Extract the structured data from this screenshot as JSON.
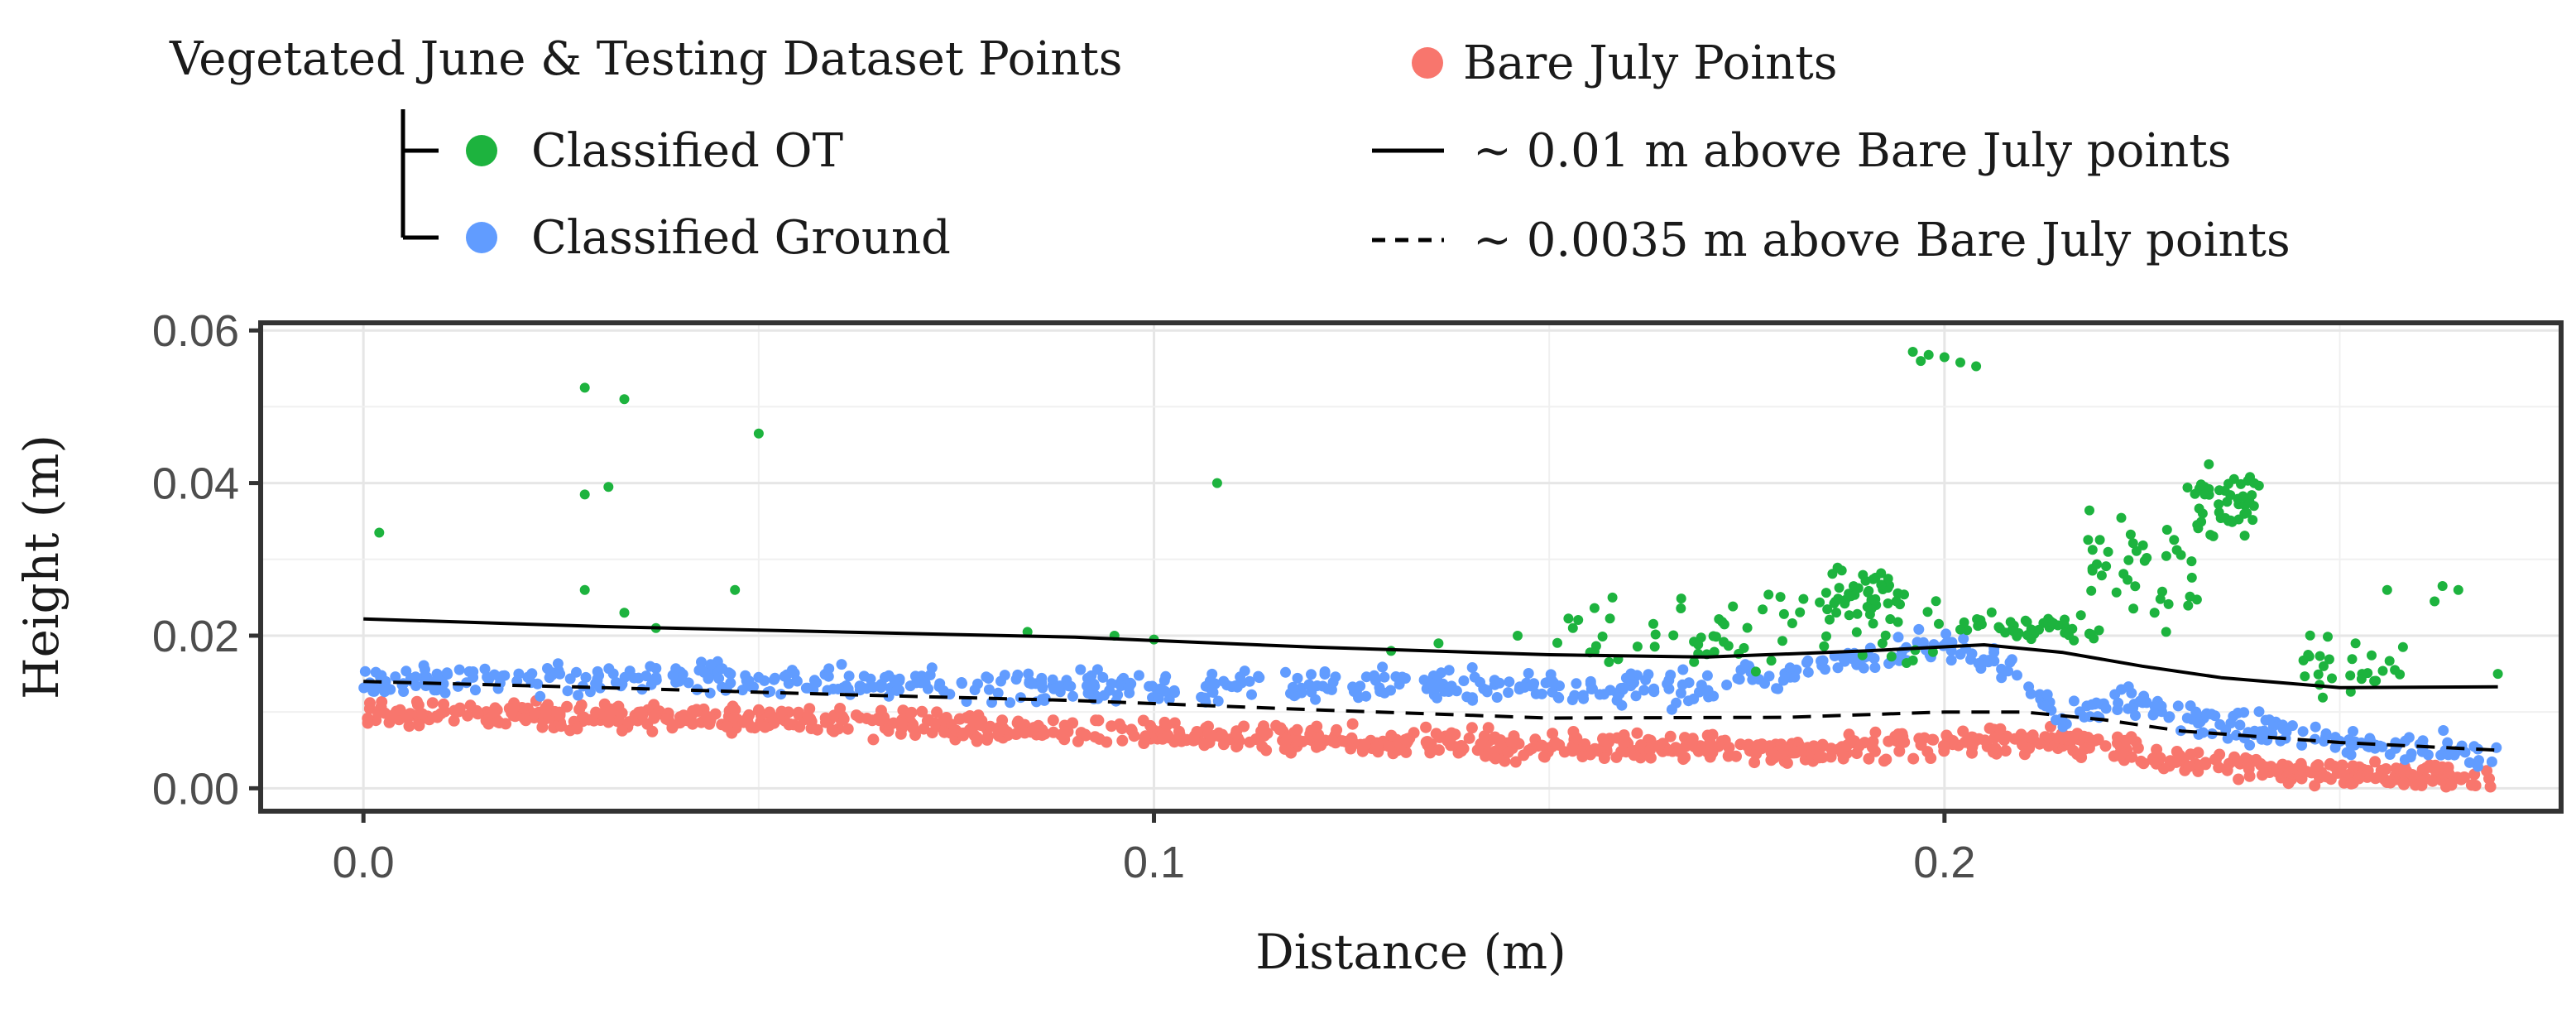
{
  "legend": {
    "group_title": "Vegetated June & Testing Dataset Points",
    "items": [
      {
        "key": "ot",
        "label": "Classified OT",
        "color": "#1db33e",
        "symbol": "point"
      },
      {
        "key": "ground",
        "label": "Classified Ground",
        "color": "#619cff",
        "symbol": "point"
      },
      {
        "key": "bare",
        "label": "Bare July Points",
        "color": "#f8766d",
        "symbol": "point"
      },
      {
        "key": "solid",
        "label": "~ 0.01 m above Bare July points",
        "color": "#000000",
        "symbol": "solid-line"
      },
      {
        "key": "dashed",
        "label": "~ 0.0035 m above Bare July points",
        "color": "#000000",
        "symbol": "dashed-line"
      }
    ]
  },
  "chart_data": {
    "type": "scatter",
    "title": "",
    "xlabel": "Distance (m)",
    "ylabel": "Height (m)",
    "xlim": [
      -0.013,
      0.278
    ],
    "ylim": [
      -0.003,
      0.061
    ],
    "x_ticks": [
      0.0,
      0.1,
      0.2
    ],
    "x_tick_labels": [
      "0.0",
      "0.1",
      "0.2"
    ],
    "y_ticks": [
      0.0,
      0.02,
      0.04,
      0.06
    ],
    "y_tick_labels": [
      "0.00",
      "0.02",
      "0.04",
      "0.06"
    ],
    "grid": true,
    "legend_position": "top",
    "series": [
      {
        "name": "Bare July Points",
        "kind": "points",
        "color": "#f8766d",
        "trend": {
          "x": [
            0.0,
            0.05,
            0.1,
            0.15,
            0.18,
            0.2,
            0.21,
            0.22,
            0.23,
            0.25,
            0.27
          ],
          "y": [
            0.01,
            0.009,
            0.007,
            0.0055,
            0.005,
            0.0058,
            0.0065,
            0.0055,
            0.0035,
            0.002,
            0.001
          ]
        },
        "spread": 0.0012,
        "density": 1000
      },
      {
        "name": "Classified Ground",
        "kind": "points",
        "color": "#619cff",
        "trend": {
          "x": [
            0.0,
            0.03,
            0.06,
            0.1,
            0.14,
            0.17,
            0.19,
            0.2,
            0.208,
            0.215,
            0.225,
            0.235,
            0.25,
            0.27
          ],
          "y": [
            0.014,
            0.0145,
            0.014,
            0.013,
            0.0135,
            0.013,
            0.017,
            0.019,
            0.016,
            0.01,
            0.012,
            0.0085,
            0.006,
            0.0045
          ]
        },
        "spread": 0.0015,
        "density": 700
      },
      {
        "name": "Classified OT",
        "kind": "points",
        "color": "#1db33e",
        "points": [
          [
            0.002,
            0.0335
          ],
          [
            0.028,
            0.0525
          ],
          [
            0.028,
            0.0385
          ],
          [
            0.031,
            0.0395
          ],
          [
            0.033,
            0.051
          ],
          [
            0.05,
            0.0465
          ],
          [
            0.047,
            0.026
          ],
          [
            0.028,
            0.026
          ],
          [
            0.033,
            0.023
          ],
          [
            0.037,
            0.021
          ],
          [
            0.108,
            0.04
          ],
          [
            0.084,
            0.0205
          ],
          [
            0.095,
            0.02
          ],
          [
            0.1,
            0.0195
          ],
          [
            0.13,
            0.018
          ],
          [
            0.136,
            0.019
          ],
          [
            0.146,
            0.02
          ],
          [
            0.153,
            0.021
          ],
          [
            0.158,
            0.025
          ],
          [
            0.196,
            0.0572
          ],
          [
            0.198,
            0.0568
          ],
          [
            0.2,
            0.0565
          ],
          [
            0.202,
            0.0558
          ],
          [
            0.204,
            0.0553
          ],
          [
            0.197,
            0.056
          ],
          [
            0.263,
            0.0265
          ],
          [
            0.265,
            0.026
          ],
          [
            0.256,
            0.026
          ],
          [
            0.262,
            0.0245
          ],
          [
            0.258,
            0.0185
          ],
          [
            0.27,
            0.015
          ],
          [
            0.246,
            0.0175
          ],
          [
            0.252,
            0.019
          ]
        ],
        "clusters": [
          {
            "x": [
              0.15,
              0.2
            ],
            "y_center": 0.021,
            "y_spread": 0.004,
            "count": 70
          },
          {
            "x": [
              0.185,
              0.195
            ],
            "y_center": 0.026,
            "y_spread": 0.002,
            "count": 40
          },
          {
            "x": [
              0.2,
              0.22
            ],
            "y_center": 0.021,
            "y_spread": 0.0015,
            "count": 45
          },
          {
            "x": [
              0.218,
              0.232
            ],
            "y_center": 0.028,
            "y_spread": 0.005,
            "count": 40
          },
          {
            "x": [
              0.23,
              0.24
            ],
            "y_center": 0.037,
            "y_spread": 0.003,
            "count": 45
          },
          {
            "x": [
              0.245,
              0.258
            ],
            "y_center": 0.016,
            "y_spread": 0.0025,
            "count": 25
          }
        ]
      },
      {
        "name": "~ 0.01 m above Bare July points",
        "kind": "line",
        "style": "solid",
        "color": "#000000",
        "x": [
          0.0,
          0.03,
          0.06,
          0.09,
          0.12,
          0.15,
          0.17,
          0.19,
          0.205,
          0.215,
          0.225,
          0.235,
          0.25,
          0.27
        ],
        "y": [
          0.0222,
          0.0212,
          0.0205,
          0.0198,
          0.0185,
          0.0175,
          0.0172,
          0.018,
          0.0188,
          0.0178,
          0.016,
          0.0145,
          0.0132,
          0.0133
        ]
      },
      {
        "name": "~ 0.0035 m above Bare July points",
        "kind": "line",
        "style": "dashed",
        "color": "#000000",
        "x": [
          0.0,
          0.03,
          0.06,
          0.09,
          0.12,
          0.15,
          0.18,
          0.2,
          0.21,
          0.22,
          0.23,
          0.25,
          0.27
        ],
        "y": [
          0.014,
          0.0132,
          0.0123,
          0.0115,
          0.0103,
          0.0092,
          0.0093,
          0.01,
          0.01,
          0.009,
          0.0075,
          0.006,
          0.005
        ]
      }
    ]
  }
}
